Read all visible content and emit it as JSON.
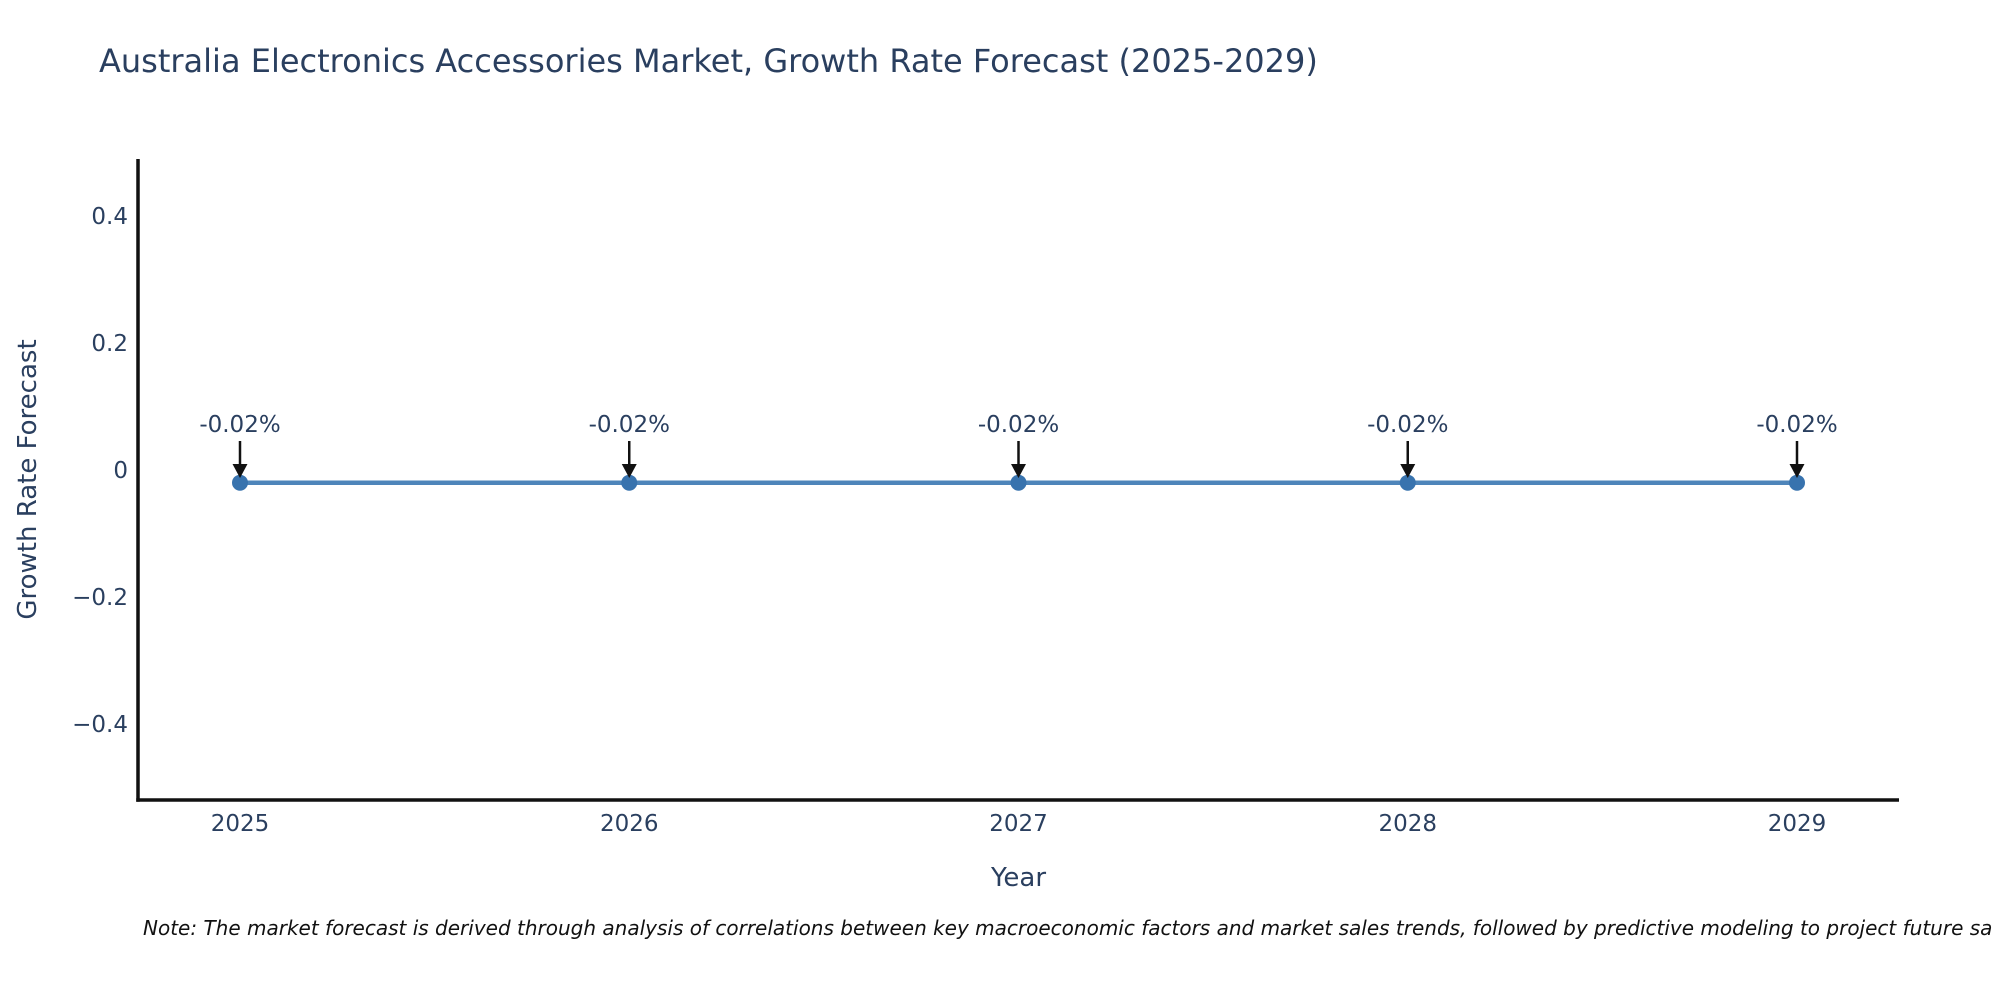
{
  "page": {
    "background": "#ffffff"
  },
  "title": "Australia Electronics Accessories Market, Growth Rate Forecast (2025-2029)",
  "note": "Note: The market forecast is derived through analysis of correlations between key macroeconomic factors and market sales trends, followed by predictive modeling to project future sa",
  "chart_data": {
    "type": "line",
    "title": "Australia Electronics Accessories Market, Growth Rate Forecast (2025-2029)",
    "xlabel": "Year",
    "ylabel": "Growth Rate Forecast",
    "x": [
      2025,
      2026,
      2027,
      2028,
      2029
    ],
    "x_tick_labels": [
      "2025",
      "2026",
      "2027",
      "2028",
      "2029"
    ],
    "series": [
      {
        "name": "Growth Rate Forecast",
        "values": [
          -0.02,
          -0.02,
          -0.02,
          -0.02,
          -0.02
        ]
      }
    ],
    "point_labels": [
      "-0.02%",
      "-0.02%",
      "-0.02%",
      "-0.02%",
      "-0.02%"
    ],
    "y_ticks": [
      {
        "value": 0.4,
        "label": "0.4"
      },
      {
        "value": 0.2,
        "label": "0.2"
      },
      {
        "value": 0,
        "label": "0"
      },
      {
        "value": -0.2,
        "label": "−0.2"
      },
      {
        "value": -0.4,
        "label": "−0.4"
      }
    ],
    "ylim": [
      -0.52,
      0.49
    ],
    "grid": false,
    "legend": "none",
    "colors": {
      "line": "#4e85ba",
      "marker": "#3873ae",
      "axis_line": "#111111",
      "text": "#2a3f5f",
      "annotation_arrow": "#111111",
      "note_text": "#111111"
    }
  }
}
